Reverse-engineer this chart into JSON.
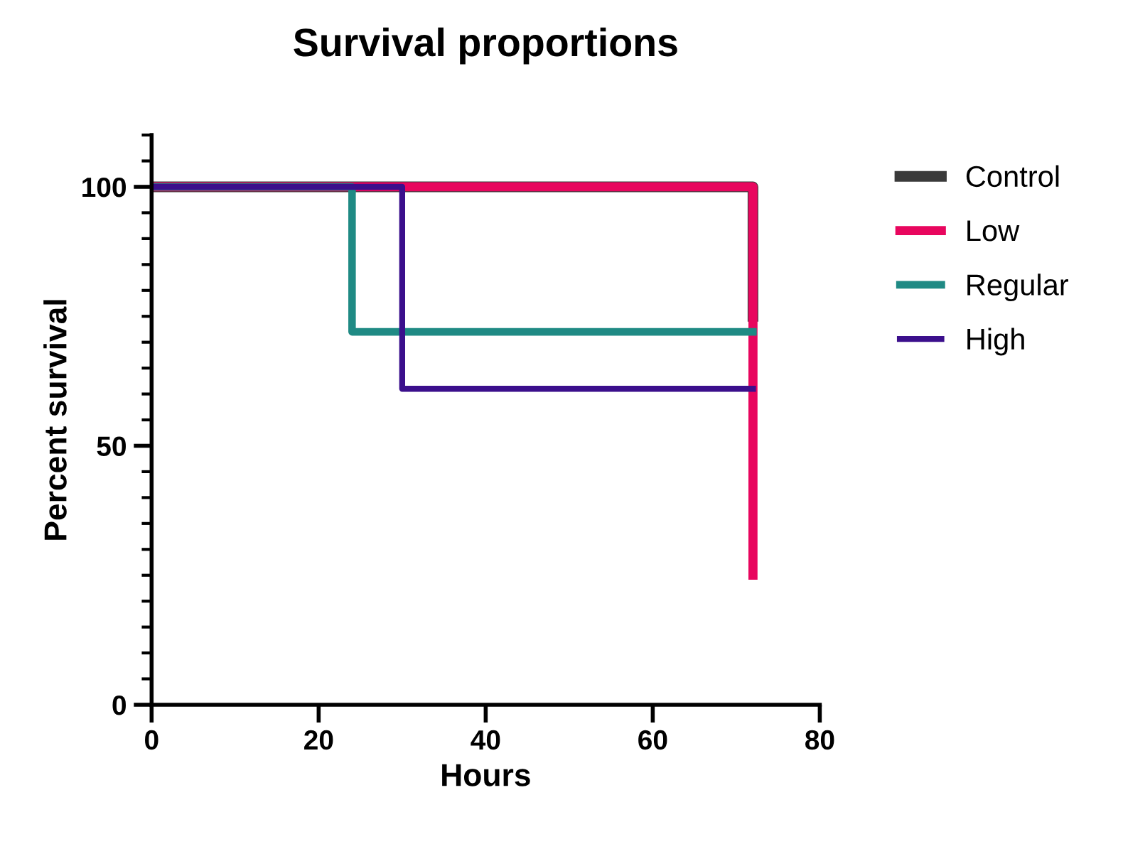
{
  "chart_data": {
    "type": "step",
    "title": "Survival proportions",
    "xlabel": "Hours",
    "ylabel": "Percent survival",
    "series": [
      {
        "name": "Control",
        "color": "#3a3a3a",
        "x": [
          0,
          72,
          72
        ],
        "values": [
          100,
          100,
          75
        ]
      },
      {
        "name": "Low",
        "color": "#e8065e",
        "x": [
          0,
          72,
          72
        ],
        "values": [
          100,
          100,
          25
        ]
      },
      {
        "name": "Regular",
        "color": "#1f8a84",
        "x": [
          0,
          24,
          72
        ],
        "values": [
          100,
          72,
          72
        ]
      },
      {
        "name": "High",
        "color": "#3b0f8c",
        "x": [
          0,
          30,
          72
        ],
        "values": [
          100,
          61,
          61
        ]
      }
    ],
    "xlim": [
      0,
      80
    ],
    "xticks": [
      0,
      20,
      40,
      60,
      80
    ],
    "ylim": [
      0,
      110
    ],
    "yticks": [
      0,
      50,
      100
    ],
    "grid": false,
    "legend": "right",
    "line_style": "solid"
  }
}
